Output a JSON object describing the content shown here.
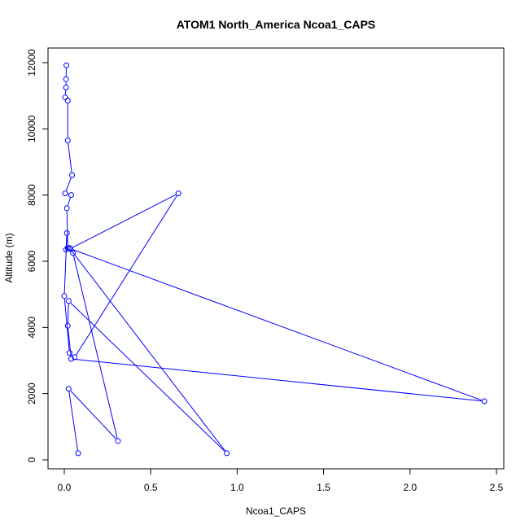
{
  "chart_data": {
    "type": "line",
    "title": "ATOM1 North_America Ncoa1_CAPS",
    "xlabel": "Ncoa1_CAPS",
    "ylabel": "Altitude (m)",
    "xlim": [
      -0.05,
      2.5
    ],
    "ylim": [
      0,
      12000
    ],
    "x_ticks": [
      0.0,
      0.5,
      1.0,
      1.5,
      2.0,
      2.5
    ],
    "x_tick_labels": [
      "0.0",
      "0.5",
      "1.0",
      "1.5",
      "2.0",
      "2.5"
    ],
    "y_ticks": [
      0,
      2000,
      4000,
      6000,
      8000,
      10000,
      12000
    ],
    "y_tick_labels": [
      "0",
      "2000",
      "4000",
      "6000",
      "8000",
      "10000",
      "12000"
    ],
    "grid": false,
    "series_color": "#0000ff",
    "points": [
      {
        "x": 0.08,
        "y": 200
      },
      {
        "x": 0.025,
        "y": 2150
      },
      {
        "x": 0.31,
        "y": 570
      },
      {
        "x": 0.05,
        "y": 6250
      },
      {
        "x": 0.03,
        "y": 6400
      },
      {
        "x": 0.94,
        "y": 200
      },
      {
        "x": 0.025,
        "y": 4800
      },
      {
        "x": 0.02,
        "y": 4050
      },
      {
        "x": 0.04,
        "y": 3050
      },
      {
        "x": 2.43,
        "y": 1770
      },
      {
        "x": 0.035,
        "y": 6380
      },
      {
        "x": 0.66,
        "y": 8050
      },
      {
        "x": 0.06,
        "y": 3100
      },
      {
        "x": 0.03,
        "y": 3230
      },
      {
        "x": 0.0,
        "y": 4950
      },
      {
        "x": 0.015,
        "y": 6850
      },
      {
        "x": 0.01,
        "y": 6350
      },
      {
        "x": 0.02,
        "y": 6400
      },
      {
        "x": 0.015,
        "y": 7600
      },
      {
        "x": 0.04,
        "y": 8000
      },
      {
        "x": 0.005,
        "y": 8050
      },
      {
        "x": 0.045,
        "y": 8600
      },
      {
        "x": 0.02,
        "y": 9650
      },
      {
        "x": 0.02,
        "y": 10850
      },
      {
        "x": 0.005,
        "y": 10950
      },
      {
        "x": 0.01,
        "y": 11250
      },
      {
        "x": 0.01,
        "y": 11500
      },
      {
        "x": 0.012,
        "y": 11920
      }
    ]
  }
}
